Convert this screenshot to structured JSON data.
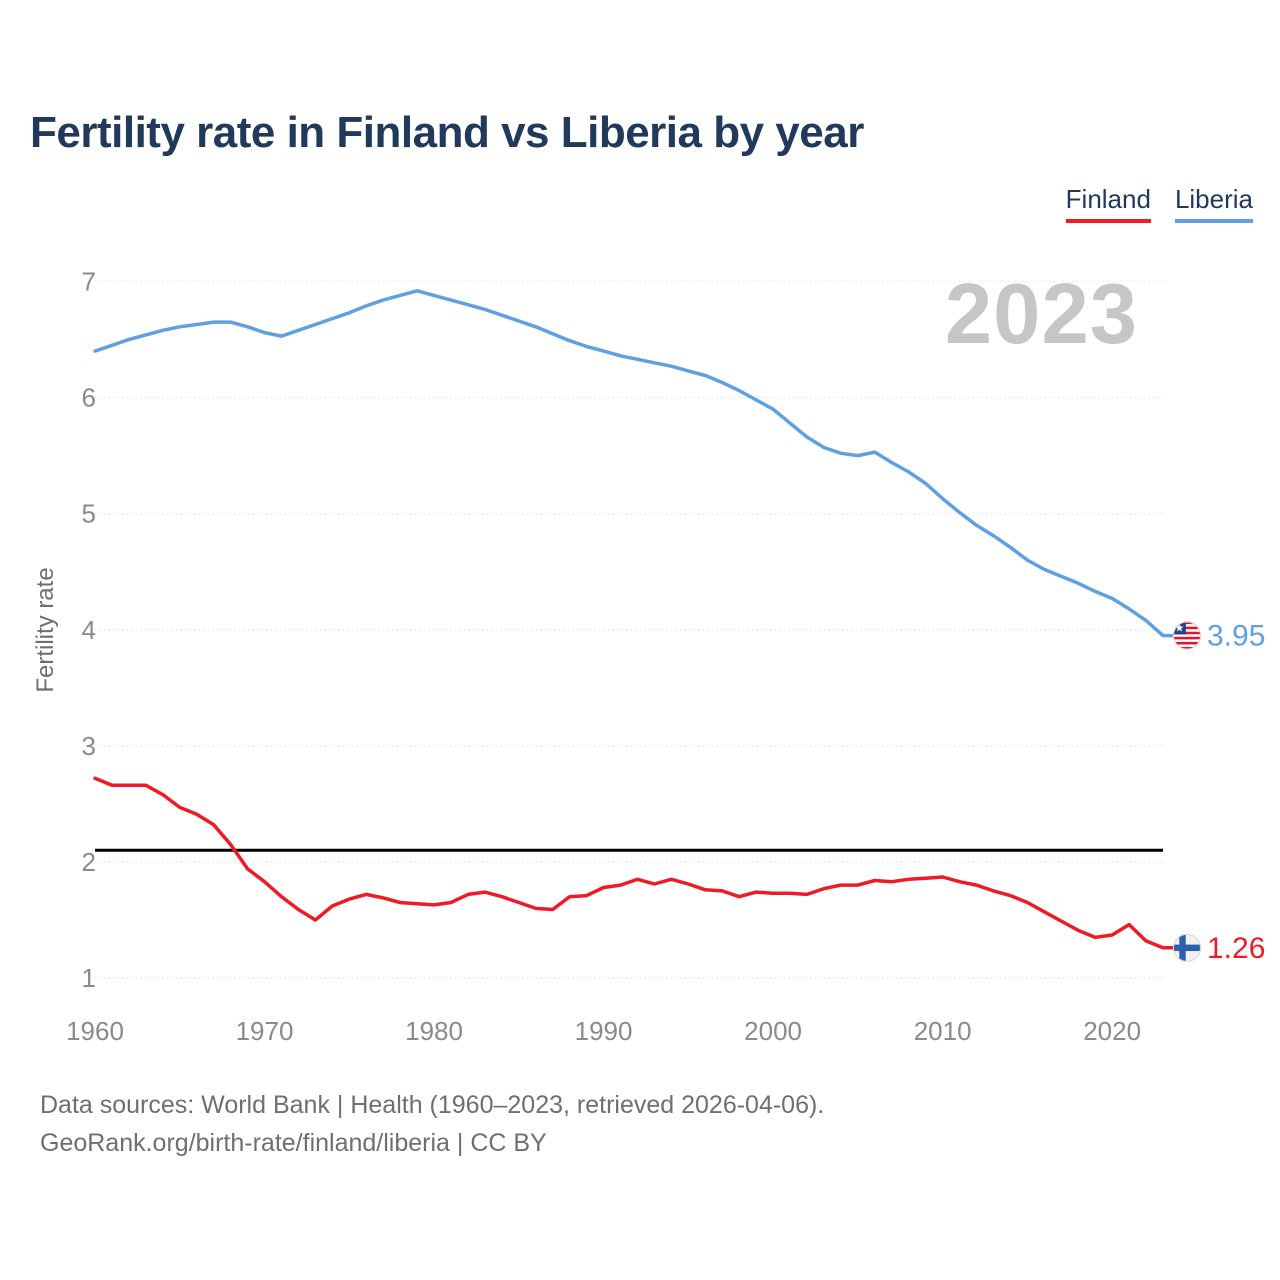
{
  "title": "Fertility rate in Finland vs Liberia by year",
  "watermark": "2023",
  "footer": {
    "line1": "Data sources: World Bank | Health (1960–2023, retrieved 2026-04-06).",
    "line2": "GeoRank.org/birth-rate/finland/liberia | CC BY"
  },
  "chart_data": {
    "type": "line",
    "title": "Fertility rate in Finland vs Liberia by year",
    "xlabel": "",
    "ylabel": "Fertility rate",
    "xlim": [
      1960,
      2023
    ],
    "ylim": [
      1,
      7
    ],
    "x_ticks": [
      1960,
      1970,
      1980,
      1990,
      2000,
      2010,
      2020
    ],
    "y_ticks": [
      1,
      2,
      3,
      4,
      5,
      6,
      7
    ],
    "grid": true,
    "legend_position": "top-right",
    "reference_line": {
      "value": 2.1,
      "color": "#000000"
    },
    "colors": {
      "grid": "#e8e8e8",
      "tick_label": "#8a8a8a",
      "watermark": "#c6c6c6"
    },
    "years": [
      1960,
      1961,
      1962,
      1963,
      1964,
      1965,
      1966,
      1967,
      1968,
      1969,
      1970,
      1971,
      1972,
      1973,
      1974,
      1975,
      1976,
      1977,
      1978,
      1979,
      1980,
      1981,
      1982,
      1983,
      1984,
      1985,
      1986,
      1987,
      1988,
      1989,
      1990,
      1991,
      1992,
      1993,
      1994,
      1995,
      1996,
      1997,
      1998,
      1999,
      2000,
      2001,
      2002,
      2003,
      2004,
      2005,
      2006,
      2007,
      2008,
      2009,
      2010,
      2011,
      2012,
      2013,
      2014,
      2015,
      2016,
      2017,
      2018,
      2019,
      2020,
      2021,
      2022,
      2023
    ],
    "series": [
      {
        "name": "Finland",
        "color": "#EE1B24",
        "end_label": "1.26",
        "flag": "finland",
        "values": [
          2.72,
          2.66,
          2.66,
          2.66,
          2.58,
          2.47,
          2.41,
          2.32,
          2.15,
          1.94,
          1.83,
          1.7,
          1.59,
          1.5,
          1.62,
          1.68,
          1.72,
          1.69,
          1.65,
          1.64,
          1.63,
          1.65,
          1.72,
          1.74,
          1.7,
          1.65,
          1.6,
          1.59,
          1.7,
          1.71,
          1.78,
          1.8,
          1.85,
          1.81,
          1.85,
          1.81,
          1.76,
          1.75,
          1.7,
          1.74,
          1.73,
          1.73,
          1.72,
          1.77,
          1.8,
          1.8,
          1.84,
          1.83,
          1.85,
          1.86,
          1.87,
          1.83,
          1.8,
          1.75,
          1.71,
          1.65,
          1.57,
          1.49,
          1.41,
          1.35,
          1.37,
          1.46,
          1.32,
          1.26
        ]
      },
      {
        "name": "Liberia",
        "color": "#5FA0E2",
        "end_label": "3.95",
        "flag": "liberia",
        "values": [
          6.4,
          6.45,
          6.5,
          6.54,
          6.58,
          6.61,
          6.63,
          6.65,
          6.65,
          6.61,
          6.56,
          6.53,
          6.58,
          6.63,
          6.68,
          6.73,
          6.79,
          6.84,
          6.88,
          6.92,
          6.88,
          6.84,
          6.8,
          6.76,
          6.71,
          6.66,
          6.61,
          6.55,
          6.49,
          6.44,
          6.4,
          6.36,
          6.33,
          6.3,
          6.27,
          6.23,
          6.19,
          6.13,
          6.06,
          5.98,
          5.9,
          5.78,
          5.66,
          5.57,
          5.52,
          5.5,
          5.53,
          5.44,
          5.36,
          5.26,
          5.13,
          5.01,
          4.9,
          4.81,
          4.71,
          4.6,
          4.52,
          4.46,
          4.4,
          4.33,
          4.27,
          4.18,
          4.08,
          3.95
        ]
      }
    ]
  }
}
